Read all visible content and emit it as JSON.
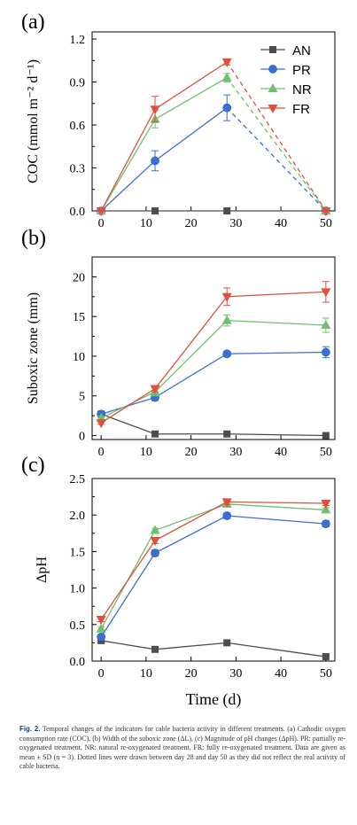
{
  "figure": {
    "xlabel": "Time (d)",
    "caption_label": "Fig. 2.",
    "caption_text": "Temporal changes of the indicators for cable bacteria activity in different treatments. (a) Cathodic oxygen consumption rate (COC), (b) Width of the suboxic zone (ΔL), (c) Magnitude of pH changes (ΔpH). PR: partially re-oxygenated treatment, NR: natural re-oxygenated treatment, FR: fully re-oxygenated treatment. Data are given as mean ± SD (n = 3). Dotted lines were drawn between day 28 and day 50 as they did not reflect the real activity of cable bacteria."
  },
  "colors": {
    "AN": "#4d4d4d",
    "PR": "#3a6fd8",
    "NR": "#6fbf6f",
    "FR": "#e0503c"
  },
  "chart_data": [
    {
      "panel_label": "(a)",
      "type": "line",
      "ylabel": "COC (mmol m⁻² d⁻¹)",
      "ylim": [
        0,
        1.25
      ],
      "yticks": [
        "0.0",
        "0.3",
        "0.6",
        "0.9",
        "1.2"
      ],
      "xlim": [
        -2,
        52
      ],
      "xticks": [
        "0",
        "10",
        "20",
        "30",
        "40",
        "50"
      ],
      "legend": "top-right",
      "x": [
        0,
        12,
        28,
        50
      ],
      "series": [
        {
          "name": "AN",
          "marker": "square",
          "values": [
            0.0,
            0.0,
            0.0,
            0.0
          ],
          "err": [
            0,
            0,
            0,
            0
          ],
          "dashed_last": false
        },
        {
          "name": "PR",
          "marker": "circle",
          "values": [
            0.0,
            0.35,
            0.72,
            0.0
          ],
          "err": [
            0,
            0.07,
            0.09,
            0
          ],
          "dashed_last": true
        },
        {
          "name": "NR",
          "marker": "triangle-up",
          "values": [
            0.0,
            0.64,
            0.93,
            0.0
          ],
          "err": [
            0,
            0.06,
            0.03,
            0
          ],
          "dashed_last": true
        },
        {
          "name": "FR",
          "marker": "triangle-down",
          "values": [
            0.0,
            0.71,
            1.04,
            0.0
          ],
          "err": [
            0,
            0.09,
            0.02,
            0
          ],
          "dashed_last": true
        }
      ]
    },
    {
      "panel_label": "(b)",
      "type": "line",
      "ylabel": "Suboxic zone (mm)",
      "ylim": [
        -0.5,
        22.5
      ],
      "yticks": [
        "0",
        "5",
        "10",
        "15",
        "20"
      ],
      "xlim": [
        -2,
        52
      ],
      "xticks": [
        "0",
        "10",
        "20",
        "30",
        "40",
        "50"
      ],
      "x": [
        0,
        12,
        28,
        50
      ],
      "series": [
        {
          "name": "AN",
          "marker": "square",
          "values": [
            2.7,
            0.2,
            0.2,
            0.0
          ],
          "err": [
            0.2,
            0.1,
            0.1,
            0.1
          ],
          "dashed_last": false
        },
        {
          "name": "PR",
          "marker": "circle",
          "values": [
            2.7,
            4.8,
            10.3,
            10.5
          ],
          "err": [
            0.2,
            0.4,
            0.3,
            0.7
          ],
          "dashed_last": false
        },
        {
          "name": "NR",
          "marker": "triangle-up",
          "values": [
            2.2,
            5.5,
            14.5,
            13.9
          ],
          "err": [
            0.2,
            0.5,
            0.7,
            0.9
          ],
          "dashed_last": false
        },
        {
          "name": "FR",
          "marker": "triangle-down",
          "values": [
            1.6,
            5.9,
            17.5,
            18.1
          ],
          "err": [
            0.2,
            0.4,
            1.1,
            1.3
          ],
          "dashed_last": false
        }
      ]
    },
    {
      "panel_label": "(c)",
      "type": "line",
      "ylabel": "ΔpH",
      "ylim": [
        0,
        2.5
      ],
      "yticks": [
        "0.0",
        "0.5",
        "1.0",
        "1.5",
        "2.0",
        "2.5"
      ],
      "xlim": [
        -2,
        52
      ],
      "xticks": [
        "0",
        "10",
        "20",
        "30",
        "40",
        "50"
      ],
      "x": [
        0,
        12,
        28,
        50
      ],
      "series": [
        {
          "name": "AN",
          "marker": "square",
          "values": [
            0.28,
            0.16,
            0.25,
            0.06
          ],
          "err": [
            0.03,
            0.02,
            0.03,
            0.02
          ],
          "dashed_last": false
        },
        {
          "name": "PR",
          "marker": "circle",
          "values": [
            0.33,
            1.48,
            1.99,
            1.88
          ],
          "err": [
            0.03,
            0.04,
            0.04,
            0.04
          ],
          "dashed_last": false
        },
        {
          "name": "NR",
          "marker": "triangle-up",
          "values": [
            0.44,
            1.79,
            2.15,
            2.07
          ],
          "err": [
            0.03,
            0.03,
            0.03,
            0.03
          ],
          "dashed_last": false
        },
        {
          "name": "FR",
          "marker": "triangle-down",
          "values": [
            0.57,
            1.65,
            2.18,
            2.16
          ],
          "err": [
            0.03,
            0.04,
            0.03,
            0.03
          ],
          "dashed_last": false
        }
      ]
    }
  ]
}
